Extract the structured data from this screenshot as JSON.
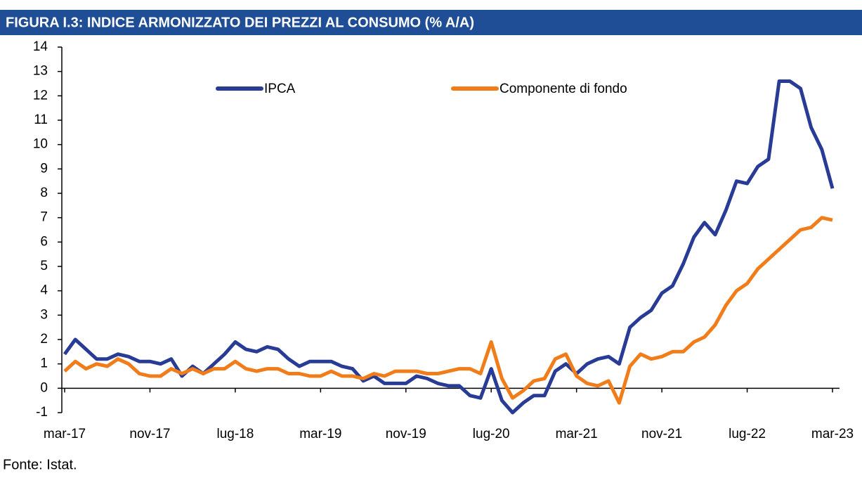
{
  "chart_data": {
    "type": "line",
    "title": "FIGURA I.3: INDICE ARMONIZZATO DEI PREZZI AL CONSUMO (% A/A)",
    "source": "Fonte: Istat.",
    "categories": [
      "mar-17",
      null,
      null,
      null,
      null,
      null,
      null,
      null,
      "nov-17",
      null,
      null,
      null,
      null,
      null,
      null,
      null,
      "lug-18",
      null,
      null,
      null,
      null,
      null,
      null,
      null,
      "mar-19",
      null,
      null,
      null,
      null,
      null,
      null,
      null,
      "nov-19",
      null,
      null,
      null,
      null,
      null,
      null,
      null,
      "lug-20",
      null,
      null,
      null,
      null,
      null,
      null,
      null,
      "mar-21",
      null,
      null,
      null,
      null,
      null,
      null,
      null,
      "nov-21",
      null,
      null,
      null,
      null,
      null,
      null,
      null,
      "lug-22",
      null,
      null,
      null,
      null,
      null,
      null,
      null,
      "mar-23"
    ],
    "series": [
      {
        "name": "IPCA",
        "color": "#283c96",
        "values": [
          1.4,
          2.0,
          1.6,
          1.2,
          1.2,
          1.4,
          1.3,
          1.1,
          1.1,
          1.0,
          1.2,
          0.5,
          0.9,
          0.6,
          1.0,
          1.4,
          1.9,
          1.6,
          1.5,
          1.7,
          1.6,
          1.2,
          0.9,
          1.1,
          1.1,
          1.1,
          0.9,
          0.8,
          0.3,
          0.5,
          0.2,
          0.2,
          0.2,
          0.5,
          0.4,
          0.2,
          0.1,
          0.1,
          -0.3,
          -0.4,
          0.8,
          -0.5,
          -1.0,
          -0.6,
          -0.3,
          -0.3,
          0.7,
          1.0,
          0.6,
          1.0,
          1.2,
          1.3,
          1.0,
          2.5,
          2.9,
          3.2,
          3.9,
          4.2,
          5.1,
          6.2,
          6.8,
          6.3,
          7.3,
          8.5,
          8.4,
          9.1,
          9.4,
          12.6,
          12.6,
          12.3,
          10.7,
          9.8,
          8.2
        ]
      },
      {
        "name": "Componente di fondo",
        "color": "#f07d1a",
        "values": [
          0.7,
          1.1,
          0.8,
          1.0,
          0.9,
          1.2,
          1.0,
          0.6,
          0.5,
          0.5,
          0.8,
          0.6,
          0.8,
          0.6,
          0.8,
          0.8,
          1.1,
          0.8,
          0.7,
          0.8,
          0.8,
          0.6,
          0.6,
          0.5,
          0.5,
          0.7,
          0.5,
          0.5,
          0.4,
          0.6,
          0.5,
          0.7,
          0.7,
          0.7,
          0.6,
          0.6,
          0.7,
          0.8,
          0.8,
          0.6,
          1.9,
          0.4,
          -0.4,
          -0.1,
          0.3,
          0.4,
          1.2,
          1.4,
          0.5,
          0.2,
          0.1,
          0.3,
          -0.6,
          0.9,
          1.4,
          1.2,
          1.3,
          1.5,
          1.5,
          1.9,
          2.1,
          2.6,
          3.4,
          4.0,
          4.3,
          4.9,
          5.3,
          5.7,
          6.1,
          6.5,
          6.6,
          7.0,
          6.9
        ]
      }
    ],
    "ylim": [
      -1,
      14
    ],
    "yticks": [
      -1,
      0,
      1,
      2,
      3,
      4,
      5,
      6,
      7,
      8,
      9,
      10,
      11,
      12,
      13,
      14
    ],
    "legend": "top"
  }
}
